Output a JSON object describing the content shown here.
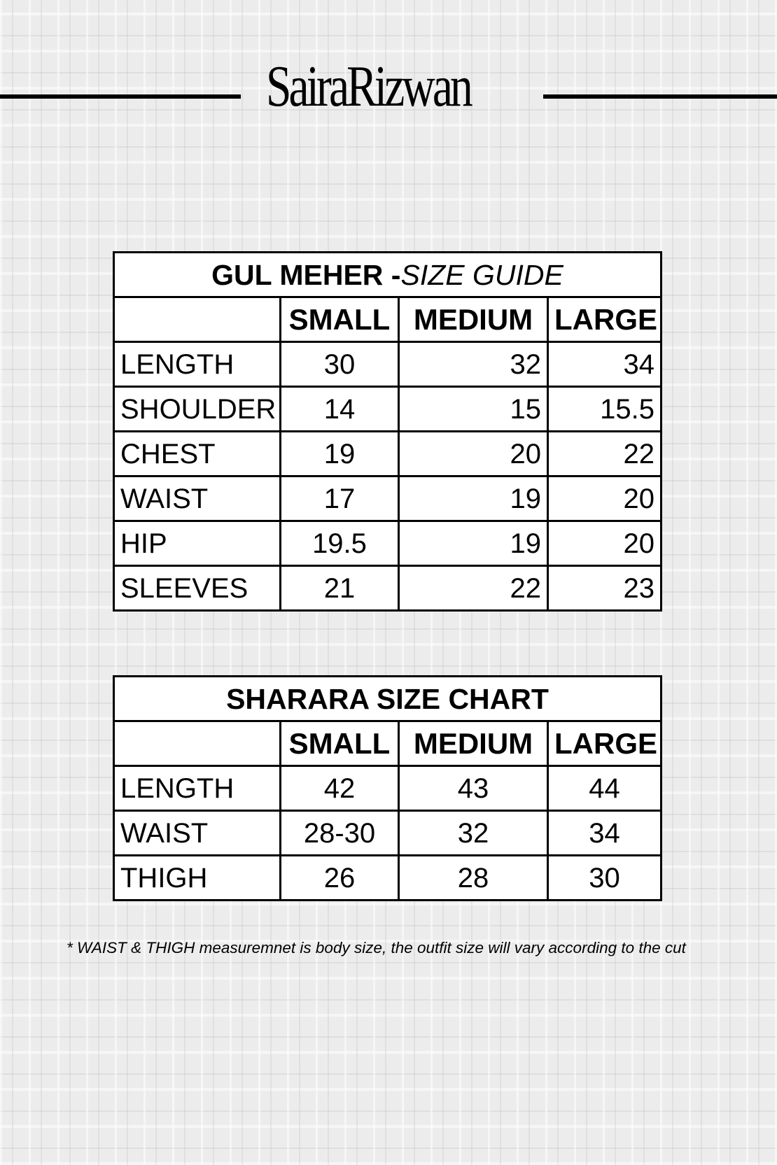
{
  "brand": {
    "logo_text": "SairaRizwan"
  },
  "size_guide": {
    "title_bold": "GUL MEHER -",
    "title_italic": "SIZE GUIDE",
    "columns": [
      "",
      "SMALL",
      "MEDIUM",
      "LARGE"
    ],
    "rows": [
      {
        "label": "LENGTH",
        "values": [
          "30",
          "32",
          "34"
        ]
      },
      {
        "label": "SHOULDER",
        "values": [
          "14",
          "15",
          "15.5"
        ]
      },
      {
        "label": "CHEST",
        "values": [
          "19",
          "20",
          "22"
        ]
      },
      {
        "label": "WAIST",
        "values": [
          "17",
          "19",
          "20"
        ]
      },
      {
        "label": "HIP",
        "values": [
          "19.5",
          "19",
          "20"
        ]
      },
      {
        "label": "SLEEVES",
        "values": [
          "21",
          "22",
          "23"
        ]
      }
    ]
  },
  "sharara_chart": {
    "title": "SHARARA SIZE CHART",
    "columns": [
      "",
      "SMALL",
      "MEDIUM",
      "LARGE"
    ],
    "rows": [
      {
        "label": "LENGTH",
        "values": [
          "42",
          "43",
          "44"
        ]
      },
      {
        "label": "WAIST",
        "values": [
          "28-30",
          "32",
          "34"
        ]
      },
      {
        "label": "THIGH",
        "values": [
          "26",
          "28",
          "30"
        ]
      }
    ]
  },
  "note": "* WAIST & THIGH measuremnet is body size, the outfit size will vary according to the cut"
}
